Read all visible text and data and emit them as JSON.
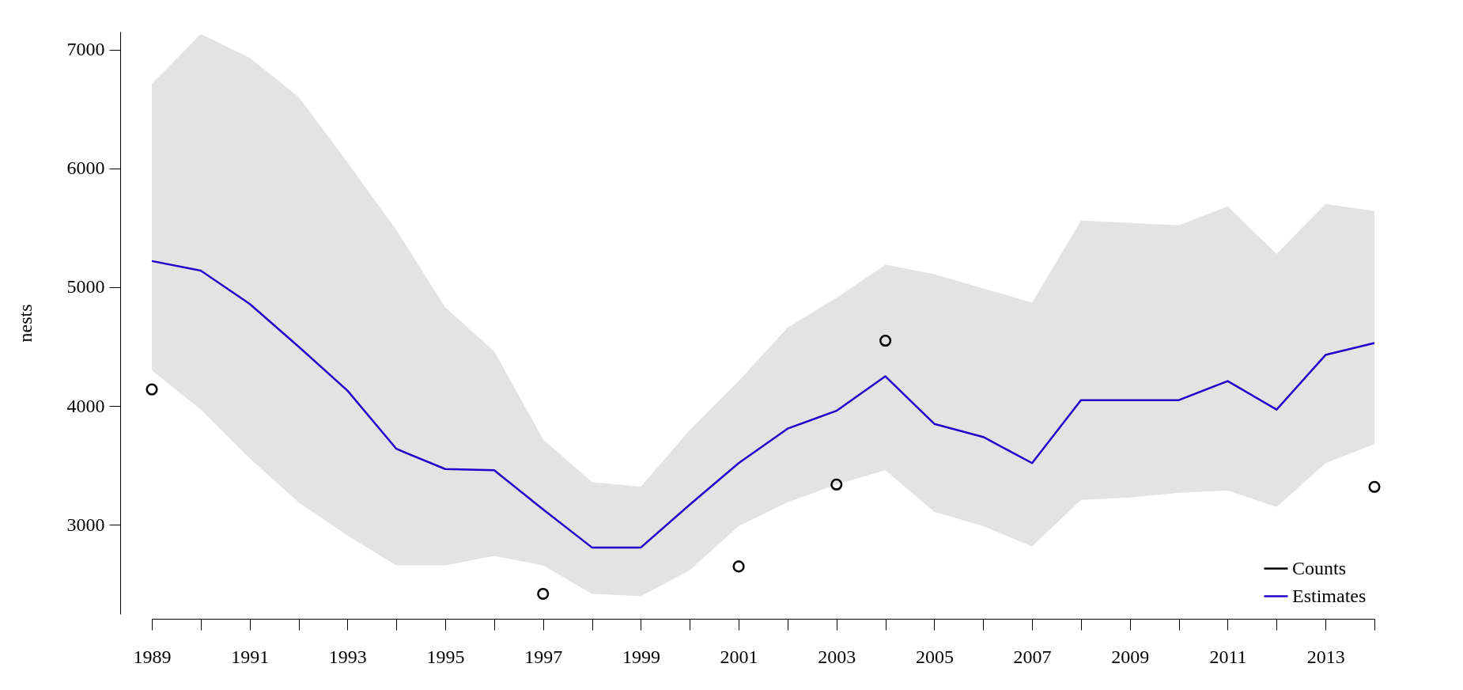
{
  "chart_data": {
    "type": "line",
    "ylabel": "nests",
    "x": [
      1989,
      1990,
      1991,
      1992,
      1993,
      1994,
      1995,
      1996,
      1997,
      1998,
      1999,
      2000,
      2001,
      2002,
      2003,
      2004,
      2005,
      2006,
      2007,
      2008,
      2009,
      2010,
      2011,
      2012,
      2013,
      2014
    ],
    "series": [
      {
        "name": "Counts",
        "type": "scatter",
        "marker": "circle",
        "color": "#000000",
        "x": [
          1989,
          1997,
          2001,
          2003,
          2004,
          2014
        ],
        "values": [
          4140,
          2420,
          2650,
          3340,
          4550,
          3320
        ]
      },
      {
        "name": "Estimates",
        "color": "#2200cc",
        "values": [
          5220,
          5140,
          4860,
          4500,
          4130,
          3640,
          3470,
          3460,
          3130,
          2810,
          2810,
          3170,
          3520,
          3810,
          3960,
          4250,
          3850,
          3740,
          3520,
          4050,
          4050,
          4050,
          4210,
          3970,
          4430,
          4530
        ],
        "lower": [
          4300,
          3970,
          3560,
          3190,
          2910,
          2660,
          2660,
          2740,
          2660,
          2420,
          2400,
          2620,
          2990,
          3190,
          3340,
          3460,
          3110,
          2990,
          2820,
          3210,
          3230,
          3270,
          3290,
          3150,
          3520,
          3680
        ],
        "upper": [
          6710,
          7130,
          6930,
          6600,
          6050,
          5480,
          4830,
          4460,
          3720,
          3360,
          3320,
          3800,
          4210,
          4660,
          4910,
          5190,
          5110,
          4990,
          4870,
          5560,
          5540,
          5520,
          5680,
          5280,
          5700,
          5640
        ]
      }
    ],
    "xlim": [
      1989,
      2014
    ],
    "xticks": [
      1989,
      {
        "value": 1990,
        "label": null
      },
      1991,
      {
        "value": 1992,
        "label": null
      },
      1993,
      {
        "value": 1994,
        "label": null
      },
      1995,
      {
        "value": 1996,
        "label": null
      },
      1997,
      {
        "value": 1998,
        "label": null
      },
      1999,
      {
        "value": 2000,
        "label": null
      },
      2001,
      {
        "value": 2002,
        "label": null
      },
      2003,
      {
        "value": 2004,
        "label": null
      },
      2005,
      {
        "value": 2006,
        "label": null
      },
      2007,
      {
        "value": 2008,
        "label": null
      },
      2009,
      {
        "value": 2010,
        "label": null
      },
      2011,
      {
        "value": 2012,
        "label": null
      },
      2013,
      {
        "value": 2014,
        "label": null
      }
    ],
    "ylim": [
      2250,
      7150
    ],
    "yticks": [
      3000,
      4000,
      5000,
      6000,
      7000
    ],
    "grid": false,
    "legend": "bottom right"
  }
}
